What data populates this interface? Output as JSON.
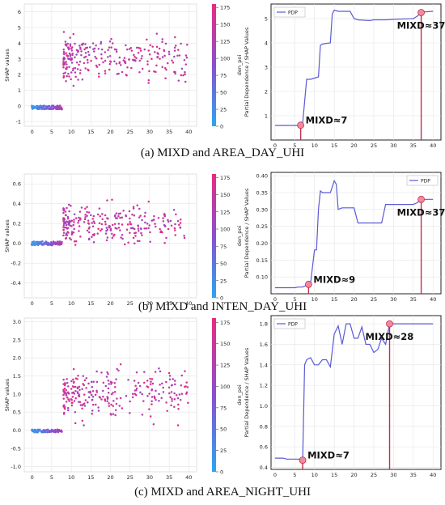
{
  "colors": {
    "scatter_low": "#2aa6f2",
    "scatter_mid": "#8a4fd0",
    "scatter_high": "#ea2a7e",
    "pdp_line": "#5a5ad6",
    "marker_fill": "#f08aa0",
    "marker_line": "#c0304a",
    "grid": "#e4e4e4"
  },
  "chart_data": [
    {
      "panel": "a",
      "type": "scatter",
      "caption": "(a) MIXD and AREA_DAY_UHI",
      "ylabel": "SHAP values",
      "colorbar_label": "den_poi",
      "colorbar_ticks": [
        0,
        25,
        50,
        75,
        100,
        125,
        150,
        175
      ],
      "colorbar_range": [
        0,
        180
      ],
      "x_ticks": [
        0,
        5,
        10,
        15,
        20,
        25,
        30,
        35,
        40
      ],
      "y_ticks": [
        -1,
        0,
        1,
        2,
        3,
        4,
        5,
        6
      ],
      "xlim": [
        -2,
        42
      ],
      "ylim": [
        -1.3,
        6.5
      ],
      "grid": true,
      "description_hint": "Near-zero SHAP values (blue, low den_poi) for MIXD < 8, then a jump to 1-6 (pink, high den_poi) for MIXD >= 8",
      "params": {
        "low_y": -0.1,
        "low_spread": 0.12,
        "jump_x": 8,
        "high_center": 3.0,
        "high_spread": 1.3,
        "seed": 11,
        "max_y": 6.1,
        "min_y": -0.9
      }
    },
    {
      "panel": "a",
      "type": "line",
      "ylabel": "Partial Dependence / SHAP Values",
      "legend": [
        "PDP"
      ],
      "legend_position": "top-left",
      "x_ticks": [
        0,
        5,
        10,
        15,
        20,
        25,
        30,
        35,
        40
      ],
      "y_ticks": [
        1,
        2,
        3,
        4,
        5
      ],
      "xlim": [
        -1,
        42
      ],
      "ylim": [
        0.0,
        5.6
      ],
      "grid": true,
      "x": [
        0,
        6,
        6.5,
        7,
        8,
        9,
        10,
        11,
        11.5,
        12,
        13,
        14,
        14.5,
        15,
        16,
        17,
        19,
        20,
        21,
        24,
        25,
        28,
        30,
        35,
        36,
        37,
        38,
        40
      ],
      "y": [
        0.6,
        0.6,
        0.61,
        0.7,
        2.5,
        2.5,
        2.55,
        2.6,
        3.9,
        3.95,
        3.98,
        4.0,
        5.2,
        5.35,
        5.3,
        5.3,
        5.3,
        5.0,
        4.95,
        4.92,
        4.95,
        4.95,
        4.97,
        5.0,
        5.1,
        5.25,
        5.28,
        5.3
      ],
      "markers": [
        {
          "x": 6.5,
          "y": 0.61,
          "label": "MIXD≈7"
        },
        {
          "x": 37,
          "y": 5.25,
          "label": "MIXD≈37"
        }
      ]
    },
    {
      "panel": "b",
      "type": "scatter",
      "caption": "(b) MIXD and INTEN_DAY_UHI",
      "ylabel": "SHAP values",
      "colorbar_label": "den_poi",
      "colorbar_ticks": [
        0,
        25,
        50,
        75,
        100,
        125,
        150,
        175
      ],
      "colorbar_range": [
        0,
        180
      ],
      "x_ticks": [
        0,
        5,
        10,
        15,
        20,
        25,
        30,
        35,
        40
      ],
      "y_ticks": [
        -0.4,
        -0.2,
        0.0,
        0.2,
        0.4,
        0.6
      ],
      "xlim": [
        -2,
        42
      ],
      "ylim": [
        -0.55,
        0.7
      ],
      "grid": true,
      "params": {
        "low_y": 0.0,
        "low_spread": 0.02,
        "jump_x": 8,
        "high_center": 0.2,
        "high_spread": 0.17,
        "seed": 23,
        "max_y": 0.62,
        "min_y": -0.5
      }
    },
    {
      "panel": "b",
      "type": "line",
      "ylabel": "Partial Dependence / SHAP Values",
      "legend": [
        "PDP"
      ],
      "legend_position": "top-right",
      "x_ticks": [
        0,
        5,
        10,
        15,
        20,
        25,
        30,
        35,
        40
      ],
      "y_ticks": [
        0.1,
        0.15,
        0.2,
        0.25,
        0.3,
        0.35,
        0.4
      ],
      "xlim": [
        -1,
        42
      ],
      "ylim": [
        0.05,
        0.41
      ],
      "grid": true,
      "x": [
        0,
        5,
        6,
        7,
        8,
        9,
        10,
        10.5,
        11,
        11.5,
        12,
        13,
        14,
        15,
        15.5,
        16,
        17,
        20,
        21,
        24,
        25,
        27,
        28,
        30,
        35,
        36,
        37,
        38,
        40
      ],
      "y": [
        0.068,
        0.068,
        0.07,
        0.07,
        0.075,
        0.08,
        0.18,
        0.18,
        0.3,
        0.355,
        0.35,
        0.35,
        0.35,
        0.385,
        0.375,
        0.3,
        0.305,
        0.305,
        0.26,
        0.26,
        0.26,
        0.26,
        0.315,
        0.315,
        0.315,
        0.32,
        0.33,
        0.33,
        0.33
      ],
      "markers": [
        {
          "x": 8.5,
          "y": 0.078,
          "label": "MIXD≈9"
        },
        {
          "x": 37,
          "y": 0.33,
          "label": "MIXD≈37"
        }
      ]
    },
    {
      "panel": "c",
      "type": "scatter",
      "caption": "(c) MIXD and AREA_NIGHT_UHI",
      "ylabel": "SHAP values",
      "colorbar_label": "den_poi",
      "colorbar_ticks": [
        0,
        25,
        50,
        75,
        100,
        125,
        150,
        175
      ],
      "colorbar_range": [
        0,
        180
      ],
      "x_ticks": [
        0,
        5,
        10,
        15,
        20,
        25,
        30,
        35,
        40
      ],
      "y_ticks": [
        -1.0,
        -0.5,
        0.0,
        0.5,
        1.0,
        1.5,
        2.0,
        2.5,
        3.0
      ],
      "xlim": [
        -2,
        42
      ],
      "ylim": [
        -1.15,
        3.1
      ],
      "grid": true,
      "params": {
        "low_y": -0.02,
        "low_spread": 0.04,
        "jump_x": 8,
        "high_center": 1.0,
        "high_spread": 0.65,
        "seed": 37,
        "max_y": 2.8,
        "min_y": -0.9
      }
    },
    {
      "panel": "c",
      "type": "line",
      "ylabel": "Partial Dependence / SHAP Values",
      "legend": [
        "PDP"
      ],
      "legend_position": "top-left",
      "x_ticks": [
        0,
        5,
        10,
        15,
        20,
        25,
        30,
        35,
        40
      ],
      "y_ticks": [
        0.4,
        0.6,
        0.8,
        1.0,
        1.2,
        1.4,
        1.6,
        1.8
      ],
      "xlim": [
        -1,
        42
      ],
      "ylim": [
        0.38,
        1.88
      ],
      "grid": true,
      "x": [
        0,
        2,
        3,
        6,
        7,
        7.5,
        8,
        9,
        10,
        11,
        12,
        13,
        14,
        15,
        16,
        17,
        18,
        19,
        20,
        21,
        22,
        23,
        24,
        25,
        26,
        27,
        28,
        29,
        30,
        35,
        40
      ],
      "y": [
        0.49,
        0.49,
        0.48,
        0.48,
        0.47,
        1.4,
        1.45,
        1.47,
        1.4,
        1.4,
        1.45,
        1.45,
        1.38,
        1.7,
        1.78,
        1.6,
        1.8,
        1.8,
        1.66,
        1.66,
        1.77,
        1.6,
        1.6,
        1.52,
        1.55,
        1.66,
        1.6,
        1.8,
        1.8,
        1.8,
        1.8
      ],
      "markers": [
        {
          "x": 7,
          "y": 0.47,
          "label": "MIXD≈7"
        },
        {
          "x": 29,
          "y": 1.8,
          "label": "MIXD≈28"
        }
      ]
    }
  ]
}
